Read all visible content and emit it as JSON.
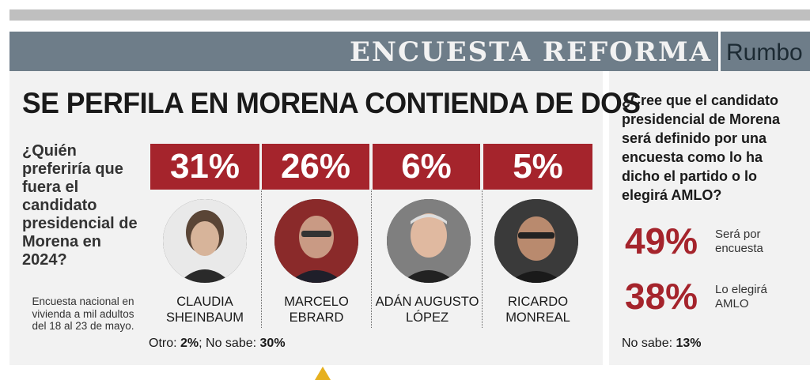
{
  "header": {
    "title": "ENCUESTA REFORMA",
    "section": "Rumbo"
  },
  "headline": "SE PERFILA EN MORENA CONTIENDA DE DOS",
  "question": "¿Quién preferiría que fuera el candidato presidencial de Morena en 2024?",
  "note": "Encuesta nacional en vivienda a mil adultos del 18 al 23 de mayo.",
  "candidates": [
    {
      "pct": "31%",
      "name1": "CLAUDIA",
      "name2": "SHEINBAUM",
      "value": 31
    },
    {
      "pct": "26%",
      "name1": "MARCELO",
      "name2": "EBRARD",
      "value": 26
    },
    {
      "pct": "6%",
      "name1": "ADÁN AUGUSTO",
      "name2": "LÓPEZ",
      "value": 6
    },
    {
      "pct": "5%",
      "name1": "RICARDO",
      "name2": "MONREAL",
      "value": 5
    }
  ],
  "footer_left": {
    "otro_label": "Otro:",
    "otro_value": "2%",
    "nosabe_label": "; No sabe:",
    "nosabe_value": "30%"
  },
  "right": {
    "question": "¿Cree que el candidato presidencial de Morena será definido por una encuesta como lo ha dicho el partido o lo elegirá AMLO?",
    "answers": [
      {
        "pct": "49%",
        "label": "Será por encuesta"
      },
      {
        "pct": "38%",
        "label": "Lo elegirá AMLO"
      }
    ],
    "nosabe_label": "No sabe:",
    "nosabe_value": "13%"
  },
  "colors": {
    "accent": "#a5242c",
    "header_bg": "#6e7d89"
  }
}
